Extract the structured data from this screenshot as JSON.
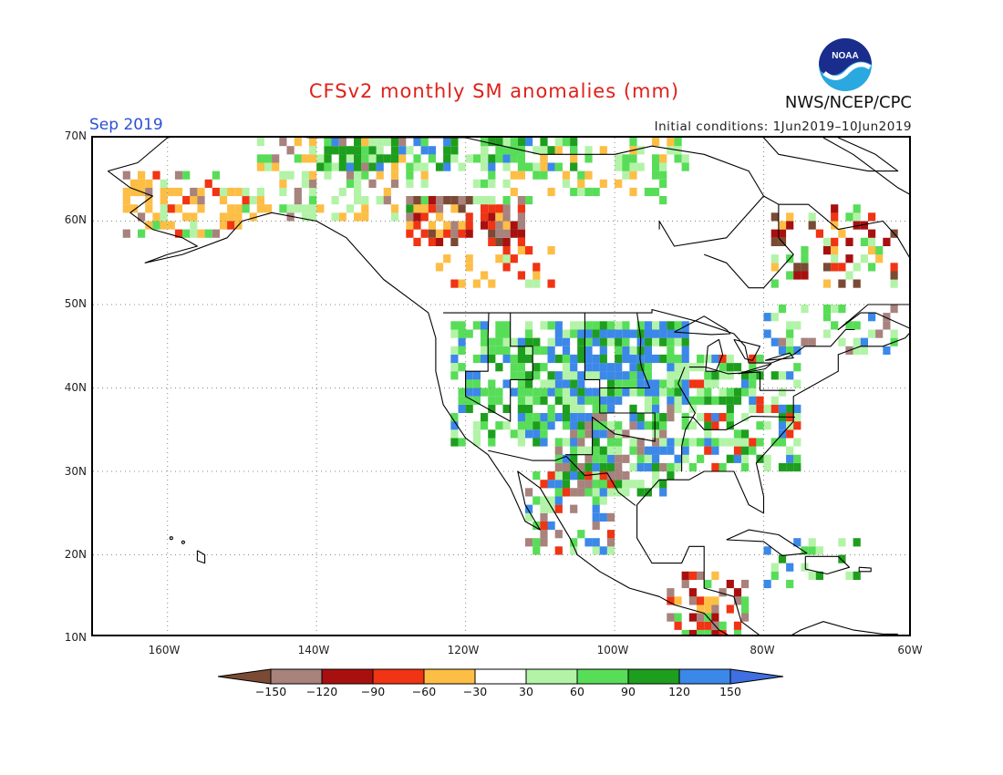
{
  "title": "CFSv2 monthly SM anomalies (mm)",
  "month": "Sep 2019",
  "initial_conditions": "Initial conditions: 1Jun2019–10Jun2019",
  "org": "NWS/NCEP/CPC",
  "logo_text": "NOAA",
  "lat_labels": [
    "70N",
    "60N",
    "50N",
    "40N",
    "30N",
    "20N",
    "10N"
  ],
  "lon_labels": [
    "160W",
    "140W",
    "120W",
    "100W",
    "80W",
    "60W"
  ],
  "legend": {
    "labels": [
      "−150",
      "−120",
      "−90",
      "−60",
      "−30",
      "30",
      "60",
      "90",
      "120",
      "150"
    ],
    "colors": [
      "#7a4a35",
      "#a8827c",
      "#a81010",
      "#f03414",
      "#fdbe46",
      "#ffffff",
      "#b3f3a8",
      "#58dd58",
      "#1e9e1e",
      "#3b88e8",
      "#3f6fe0"
    ]
  },
  "colors": {
    "title": "#e0201a",
    "month": "#2b4fd8",
    "land_outline": "#000000"
  }
}
